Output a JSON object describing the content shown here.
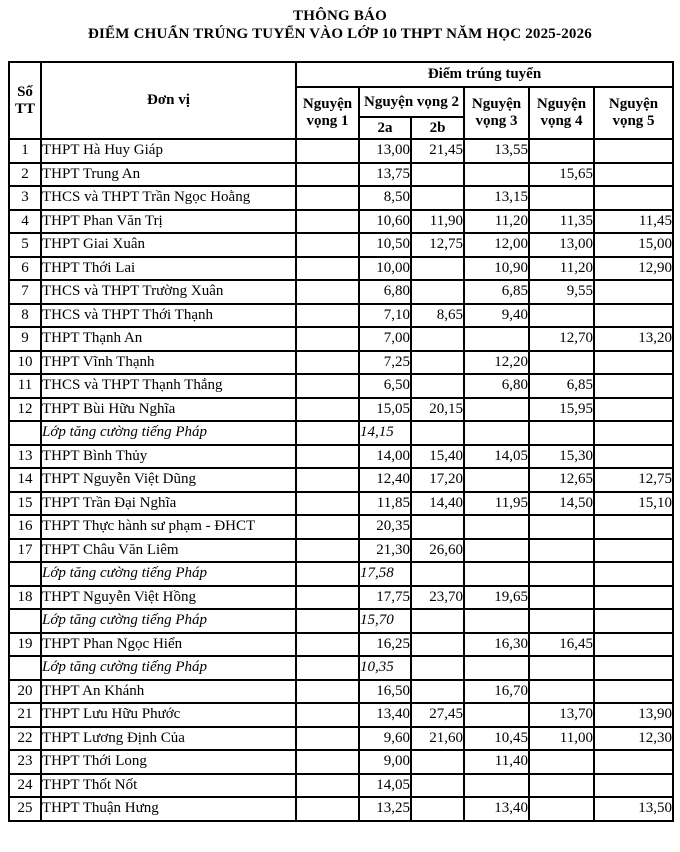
{
  "title": {
    "line1": "THÔNG BÁO",
    "line2": "ĐIỂM CHUẨN TRÚNG TUYỂN VÀO LỚP 10 THPT NĂM HỌC 2025-2026"
  },
  "table": {
    "headers": {
      "stt": "Số TT",
      "unit": "Đơn vị",
      "group": "Điểm trúng tuyển",
      "nv1": "Nguyện vọng 1",
      "nv2": "Nguyện vọng 2",
      "nv2a": "2a",
      "nv2b": "2b",
      "nv3": "Nguyện vọng 3",
      "nv4": "Nguyện vọng 4",
      "nv5": "Nguyện vọng 5"
    },
    "rows": [
      {
        "stt": "1",
        "name": "THPT Hà Huy Giáp",
        "italic": false,
        "nv1": "",
        "nv2a": "13,00",
        "nv2b": "21,45",
        "nv3": "13,55",
        "nv4": "",
        "nv5": ""
      },
      {
        "stt": "2",
        "name": "THPT Trung An",
        "italic": false,
        "nv1": "",
        "nv2a": "13,75",
        "nv2b": "",
        "nv3": "",
        "nv4": "15,65",
        "nv5": ""
      },
      {
        "stt": "3",
        "name": "THCS và THPT Trần Ngọc Hoằng",
        "italic": false,
        "nv1": "",
        "nv2a": "8,50",
        "nv2b": "",
        "nv3": "13,15",
        "nv4": "",
        "nv5": ""
      },
      {
        "stt": "4",
        "name": "THPT Phan Văn Trị",
        "italic": false,
        "nv1": "",
        "nv2a": "10,60",
        "nv2b": "11,90",
        "nv3": "11,20",
        "nv4": "11,35",
        "nv5": "11,45"
      },
      {
        "stt": "5",
        "name": "THPT Giai Xuân",
        "italic": false,
        "nv1": "",
        "nv2a": "10,50",
        "nv2b": "12,75",
        "nv3": "12,00",
        "nv4": "13,00",
        "nv5": "15,00"
      },
      {
        "stt": "6",
        "name": "THPT Thới Lai",
        "italic": false,
        "nv1": "",
        "nv2a": "10,00",
        "nv2b": "",
        "nv3": "10,90",
        "nv4": "11,20",
        "nv5": "12,90"
      },
      {
        "stt": "7",
        "name": "THCS và THPT Trường Xuân",
        "italic": false,
        "nv1": "",
        "nv2a": "6,80",
        "nv2b": "",
        "nv3": "6,85",
        "nv4": "9,55",
        "nv5": ""
      },
      {
        "stt": "8",
        "name": "THCS và THPT Thới Thạnh",
        "italic": false,
        "nv1": "",
        "nv2a": "7,10",
        "nv2b": "8,65",
        "nv3": "9,40",
        "nv4": "",
        "nv5": ""
      },
      {
        "stt": "9",
        "name": "THPT Thạnh An",
        "italic": false,
        "nv1": "",
        "nv2a": "7,00",
        "nv2b": "",
        "nv3": "",
        "nv4": "12,70",
        "nv5": "13,20"
      },
      {
        "stt": "10",
        "name": "THPT Vĩnh Thạnh",
        "italic": false,
        "nv1": "",
        "nv2a": "7,25",
        "nv2b": "",
        "nv3": "12,20",
        "nv4": "",
        "nv5": ""
      },
      {
        "stt": "11",
        "name": "THCS và THPT Thạnh Thắng",
        "italic": false,
        "nv1": "",
        "nv2a": "6,50",
        "nv2b": "",
        "nv3": "6,80",
        "nv4": "6,85",
        "nv5": ""
      },
      {
        "stt": "12",
        "name": "THPT Bùi Hữu Nghĩa",
        "italic": false,
        "nv1": "",
        "nv2a": "15,05",
        "nv2b": "20,15",
        "nv3": "",
        "nv4": "15,95",
        "nv5": ""
      },
      {
        "stt": "",
        "name": "Lớp tăng cường tiếng Pháp",
        "italic": true,
        "nv1": "",
        "nv2a": "14,15",
        "nv2b": "",
        "nv3": "",
        "nv4": "",
        "nv5": ""
      },
      {
        "stt": "13",
        "name": "THPT Bình Thủy",
        "italic": false,
        "nv1": "",
        "nv2a": "14,00",
        "nv2b": "15,40",
        "nv3": "14,05",
        "nv4": "15,30",
        "nv5": ""
      },
      {
        "stt": "14",
        "name": "THPT Nguyễn Việt Dũng",
        "italic": false,
        "nv1": "",
        "nv2a": "12,40",
        "nv2b": "17,20",
        "nv3": "",
        "nv4": "12,65",
        "nv5": "12,75"
      },
      {
        "stt": "15",
        "name": "THPT Trần Đại Nghĩa",
        "italic": false,
        "nv1": "",
        "nv2a": "11,85",
        "nv2b": "14,40",
        "nv3": "11,95",
        "nv4": "14,50",
        "nv5": "15,10"
      },
      {
        "stt": "16",
        "name": "THPT Thực hành sư phạm - ĐHCT",
        "italic": false,
        "nv1": "",
        "nv2a": "20,35",
        "nv2b": "",
        "nv3": "",
        "nv4": "",
        "nv5": ""
      },
      {
        "stt": "17",
        "name": "THPT Châu Văn Liêm",
        "italic": false,
        "nv1": "",
        "nv2a": "21,30",
        "nv2b": "26,60",
        "nv3": "",
        "nv4": "",
        "nv5": ""
      },
      {
        "stt": "",
        "name": "Lớp tăng cường tiếng Pháp",
        "italic": true,
        "nv1": "",
        "nv2a": "17,58",
        "nv2b": "",
        "nv3": "",
        "nv4": "",
        "nv5": ""
      },
      {
        "stt": "18",
        "name": "THPT Nguyễn Việt Hồng",
        "italic": false,
        "nv1": "",
        "nv2a": "17,75",
        "nv2b": "23,70",
        "nv3": "19,65",
        "nv4": "",
        "nv5": ""
      },
      {
        "stt": "",
        "name": "Lớp tăng cường tiếng Pháp",
        "italic": true,
        "nv1": "",
        "nv2a": "15,70",
        "nv2b": "",
        "nv3": "",
        "nv4": "",
        "nv5": ""
      },
      {
        "stt": "19",
        "name": "THPT Phan Ngọc Hiển",
        "italic": false,
        "nv1": "",
        "nv2a": "16,25",
        "nv2b": "",
        "nv3": "16,30",
        "nv4": "16,45",
        "nv5": ""
      },
      {
        "stt": "",
        "name": "Lớp tăng cường tiếng Pháp",
        "italic": true,
        "nv1": "",
        "nv2a": "10,35",
        "nv2b": "",
        "nv3": "",
        "nv4": "",
        "nv5": ""
      },
      {
        "stt": "20",
        "name": "THPT An Khánh",
        "italic": false,
        "nv1": "",
        "nv2a": "16,50",
        "nv2b": "",
        "nv3": "16,70",
        "nv4": "",
        "nv5": ""
      },
      {
        "stt": "21",
        "name": "THPT Lưu Hữu Phước",
        "italic": false,
        "nv1": "",
        "nv2a": "13,40",
        "nv2b": "27,45",
        "nv3": "",
        "nv4": "13,70",
        "nv5": "13,90"
      },
      {
        "stt": "22",
        "name": "THPT Lương Định Của",
        "italic": false,
        "nv1": "",
        "nv2a": "9,60",
        "nv2b": "21,60",
        "nv3": "10,45",
        "nv4": "11,00",
        "nv5": "12,30"
      },
      {
        "stt": "23",
        "name": "THPT Thới Long",
        "italic": false,
        "nv1": "",
        "nv2a": "9,00",
        "nv2b": "",
        "nv3": "11,40",
        "nv4": "",
        "nv5": ""
      },
      {
        "stt": "24",
        "name": "THPT Thốt Nốt",
        "italic": false,
        "nv1": "",
        "nv2a": "14,05",
        "nv2b": "",
        "nv3": "",
        "nv4": "",
        "nv5": ""
      },
      {
        "stt": "25",
        "name": "THPT Thuận Hưng",
        "italic": false,
        "nv1": "",
        "nv2a": "13,25",
        "nv2b": "",
        "nv3": "13,40",
        "nv4": "",
        "nv5": "13,50"
      }
    ]
  }
}
